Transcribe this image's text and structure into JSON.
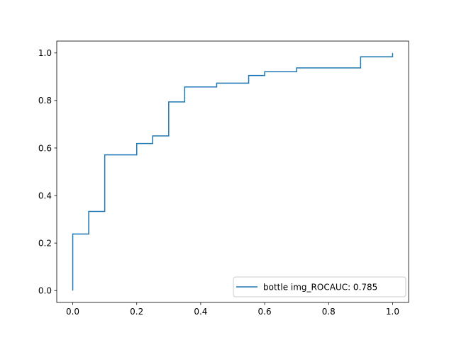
{
  "chart_data": {
    "type": "line",
    "title": "",
    "xlabel": "",
    "ylabel": "",
    "xlim": [
      -0.05,
      1.05
    ],
    "ylim": [
      -0.05,
      1.05
    ],
    "grid": false,
    "legend_position": "lower-right",
    "x_ticks": [
      0.0,
      0.2,
      0.4,
      0.6,
      0.8,
      1.0
    ],
    "x_tick_labels": [
      "0.0",
      "0.2",
      "0.4",
      "0.6",
      "0.8",
      "1.0"
    ],
    "y_ticks": [
      0.0,
      0.2,
      0.4,
      0.6,
      0.8,
      1.0
    ],
    "y_tick_labels": [
      "0.0",
      "0.2",
      "0.4",
      "0.6",
      "0.8",
      "1.0"
    ],
    "series": [
      {
        "name": "bottle img_ROCAUC: 0.785",
        "color": "#1f77b4",
        "drawstyle": "steps",
        "x": [
          0.0,
          0.0,
          0.05,
          0.05,
          0.1,
          0.1,
          0.2,
          0.2,
          0.25,
          0.25,
          0.3,
          0.3,
          0.35,
          0.35,
          0.45,
          0.45,
          0.55,
          0.55,
          0.6,
          0.6,
          0.7,
          0.7,
          0.9,
          0.9,
          1.0,
          1.0
        ],
        "y": [
          0.0,
          0.238,
          0.238,
          0.333,
          0.333,
          0.571,
          0.571,
          0.619,
          0.619,
          0.651,
          0.651,
          0.794,
          0.794,
          0.857,
          0.857,
          0.873,
          0.873,
          0.905,
          0.905,
          0.921,
          0.921,
          0.937,
          0.937,
          0.984,
          0.984,
          1.0
        ]
      }
    ]
  }
}
